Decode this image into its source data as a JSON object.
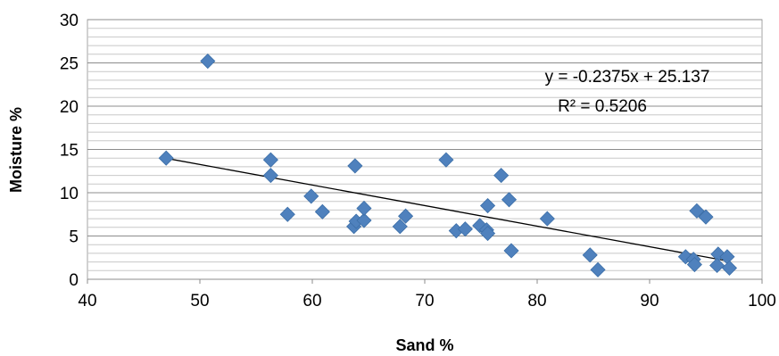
{
  "chart_data": {
    "type": "scatter",
    "title": "",
    "xlabel": "Sand %",
    "ylabel": "Moisture %",
    "xlim": [
      40,
      100
    ],
    "ylim": [
      0,
      30
    ],
    "x_ticks": [
      40,
      50,
      60,
      70,
      80,
      90,
      100
    ],
    "y_ticks": [
      0,
      5,
      10,
      15,
      20,
      25,
      30
    ],
    "x_tick_labels": [
      "40",
      "50",
      "60",
      "70",
      "80",
      "90",
      "100"
    ],
    "y_tick_labels": [
      "0",
      "5",
      "10",
      "15",
      "20",
      "25",
      "30"
    ],
    "grid": "horizontal",
    "minor_grid_step": 1,
    "legend": "none",
    "marker": "diamond",
    "marker_color": "#4F81BD",
    "trendline": {
      "type": "linear",
      "slope": -0.2375,
      "intercept": 25.137,
      "x_range": [
        47,
        97
      ],
      "equation_label": "y = -0.2375x + 25.137",
      "r2_label": "R² = 0.5206"
    },
    "series": [
      {
        "points": [
          {
            "x": 47.0,
            "y": 14.0
          },
          {
            "x": 50.7,
            "y": 25.2
          },
          {
            "x": 56.3,
            "y": 13.8
          },
          {
            "x": 56.3,
            "y": 12.0
          },
          {
            "x": 57.8,
            "y": 7.5
          },
          {
            "x": 59.9,
            "y": 9.6
          },
          {
            "x": 60.9,
            "y": 7.8
          },
          {
            "x": 63.8,
            "y": 13.1
          },
          {
            "x": 63.7,
            "y": 6.1
          },
          {
            "x": 63.9,
            "y": 6.7
          },
          {
            "x": 64.6,
            "y": 6.8
          },
          {
            "x": 64.6,
            "y": 8.2
          },
          {
            "x": 67.8,
            "y": 6.1
          },
          {
            "x": 68.3,
            "y": 7.3
          },
          {
            "x": 71.9,
            "y": 13.8
          },
          {
            "x": 72.8,
            "y": 5.6
          },
          {
            "x": 73.6,
            "y": 5.8
          },
          {
            "x": 74.9,
            "y": 6.2
          },
          {
            "x": 75.5,
            "y": 5.7
          },
          {
            "x": 75.6,
            "y": 5.3
          },
          {
            "x": 75.6,
            "y": 8.5
          },
          {
            "x": 76.8,
            "y": 12.0
          },
          {
            "x": 77.5,
            "y": 9.2
          },
          {
            "x": 77.7,
            "y": 3.3
          },
          {
            "x": 80.9,
            "y": 7.0
          },
          {
            "x": 84.7,
            "y": 2.8
          },
          {
            "x": 85.4,
            "y": 1.1
          },
          {
            "x": 93.2,
            "y": 2.6
          },
          {
            "x": 93.9,
            "y": 2.3
          },
          {
            "x": 94.0,
            "y": 1.7
          },
          {
            "x": 94.2,
            "y": 7.9
          },
          {
            "x": 95.0,
            "y": 7.2
          },
          {
            "x": 96.1,
            "y": 2.9
          },
          {
            "x": 96.0,
            "y": 1.6
          },
          {
            "x": 96.9,
            "y": 2.6
          },
          {
            "x": 97.1,
            "y": 1.3
          }
        ]
      }
    ]
  }
}
